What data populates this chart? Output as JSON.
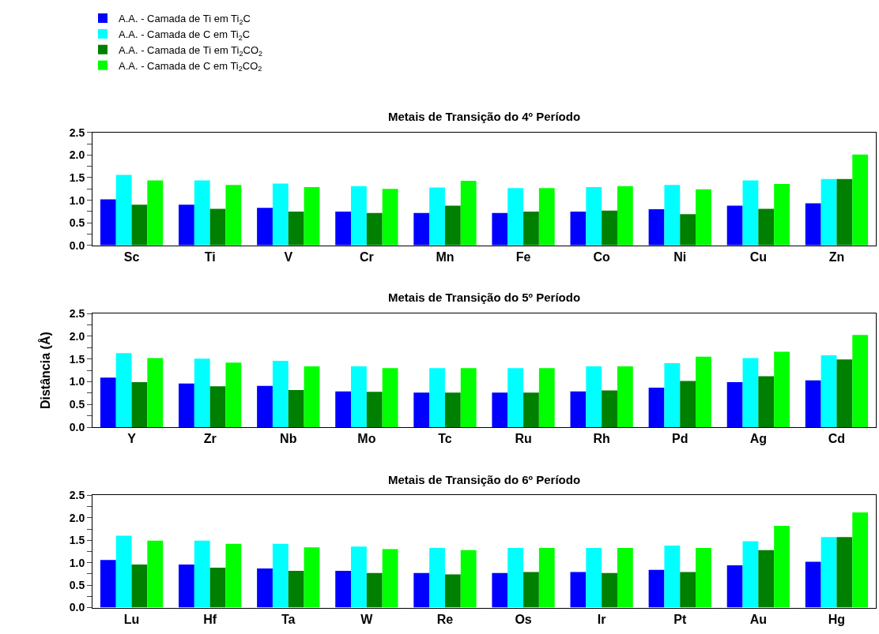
{
  "chart_data": [
    {
      "type": "bar",
      "title": "Metais de Transição do 4º Período",
      "legend": "top left",
      "categories": [
        "Sc",
        "Ti",
        "V",
        "Cr",
        "Mn",
        "Fe",
        "Co",
        "Ni",
        "Cu",
        "Zn"
      ],
      "ylim": [
        0,
        2.5
      ],
      "yticks": [
        {
          "value": 0,
          "label": "0.0"
        },
        {
          "value": 0.25,
          "label": null
        },
        0.5,
        {
          "value": 0.75,
          "label": null
        },
        {
          "value": 1,
          "label": "1.0"
        },
        {
          "value": 1.25,
          "label": null
        },
        1.5,
        {
          "value": 1.75,
          "label": null
        },
        {
          "value": 2,
          "label": "2.0"
        },
        {
          "value": 2.25,
          "label": null
        },
        2.5
      ],
      "series": [
        {
          "name": "A.A. - Camada de Ti em Ti$_{2}$C",
          "color": "#0000ff",
          "values": [
            1.02,
            0.9,
            0.83,
            0.75,
            0.72,
            0.72,
            0.75,
            0.8,
            0.88,
            0.93
          ]
        },
        {
          "name": "A.A. - Camada de C em Ti$_{2}$C",
          "color": "#00ffff",
          "values": [
            1.56,
            1.44,
            1.37,
            1.31,
            1.28,
            1.27,
            1.29,
            1.34,
            1.44,
            1.47
          ]
        },
        {
          "name": "A.A. - Camada de Ti em Ti$_{2}$CO$_{2}$",
          "color": "#008000",
          "values": [
            0.9,
            0.81,
            0.75,
            0.72,
            0.88,
            0.75,
            0.77,
            0.69,
            0.81,
            1.47
          ]
        },
        {
          "name": "A.A. - Camada de C em Ti$_{2}$CO$_{2}$",
          "color": "#00ff00",
          "values": [
            1.44,
            1.34,
            1.29,
            1.25,
            1.43,
            1.27,
            1.31,
            1.24,
            1.36,
            2.01
          ]
        }
      ]
    },
    {
      "type": "bar",
      "title": "Metais de Transição do 5º Período",
      "ylabel": "Distância (Å)",
      "categories": [
        "Y",
        "Zr",
        "Nb",
        "Mo",
        "Tc",
        "Ru",
        "Rh",
        "Pd",
        "Ag",
        "Cd"
      ],
      "ylim": [
        0,
        2.5
      ],
      "yticks": [
        {
          "value": 0,
          "label": "0.0"
        },
        {
          "value": 0.25,
          "label": null
        },
        0.5,
        {
          "value": 0.75,
          "label": null
        },
        {
          "value": 1,
          "label": "1.0"
        },
        {
          "value": 1.25,
          "label": null
        },
        1.5,
        {
          "value": 1.75,
          "label": null
        },
        {
          "value": 2,
          "label": "2.0"
        },
        {
          "value": 2.25,
          "label": null
        },
        2.5
      ],
      "series": [
        {
          "color": "#0000ff",
          "values": [
            1.09,
            0.96,
            0.91,
            0.79,
            0.76,
            0.76,
            0.79,
            0.87,
            0.99,
            1.03
          ]
        },
        {
          "color": "#00ffff",
          "values": [
            1.63,
            1.51,
            1.46,
            1.34,
            1.3,
            1.3,
            1.34,
            1.41,
            1.52,
            1.58
          ]
        },
        {
          "color": "#008000",
          "values": [
            0.99,
            0.9,
            0.82,
            0.78,
            0.76,
            0.76,
            0.81,
            1.02,
            1.12,
            1.49
          ]
        },
        {
          "color": "#00ff00",
          "values": [
            1.52,
            1.42,
            1.34,
            1.3,
            1.3,
            1.3,
            1.34,
            1.55,
            1.66,
            2.03
          ]
        }
      ]
    },
    {
      "type": "bar",
      "title": "Metais de Transição do 6º Período",
      "categories": [
        "Lu",
        "Hf",
        "Ta",
        "W",
        "Re",
        "Os",
        "Ir",
        "Pt",
        "Au",
        "Hg"
      ],
      "ylim": [
        0,
        2.5
      ],
      "yticks": [
        {
          "value": 0,
          "label": "0.0"
        },
        {
          "value": 0.25,
          "label": null
        },
        0.5,
        {
          "value": 0.75,
          "label": null
        },
        {
          "value": 1,
          "label": "1.0"
        },
        {
          "value": 1.25,
          "label": null
        },
        1.5,
        {
          "value": 1.75,
          "label": null
        },
        {
          "value": 2,
          "label": "2.0"
        },
        {
          "value": 2.25,
          "label": null
        },
        2.5
      ],
      "series": [
        {
          "color": "#0000ff",
          "values": [
            1.06,
            0.96,
            0.87,
            0.82,
            0.77,
            0.77,
            0.79,
            0.84,
            0.94,
            1.02
          ]
        },
        {
          "color": "#00ffff",
          "values": [
            1.6,
            1.49,
            1.42,
            1.36,
            1.33,
            1.33,
            1.33,
            1.38,
            1.48,
            1.57
          ]
        },
        {
          "color": "#008000",
          "values": [
            0.96,
            0.89,
            0.82,
            0.77,
            0.74,
            0.79,
            0.77,
            0.79,
            1.28,
            1.57
          ]
        },
        {
          "color": "#00ff00",
          "values": [
            1.49,
            1.42,
            1.34,
            1.3,
            1.28,
            1.33,
            1.33,
            1.33,
            1.82,
            2.12
          ]
        }
      ]
    }
  ]
}
